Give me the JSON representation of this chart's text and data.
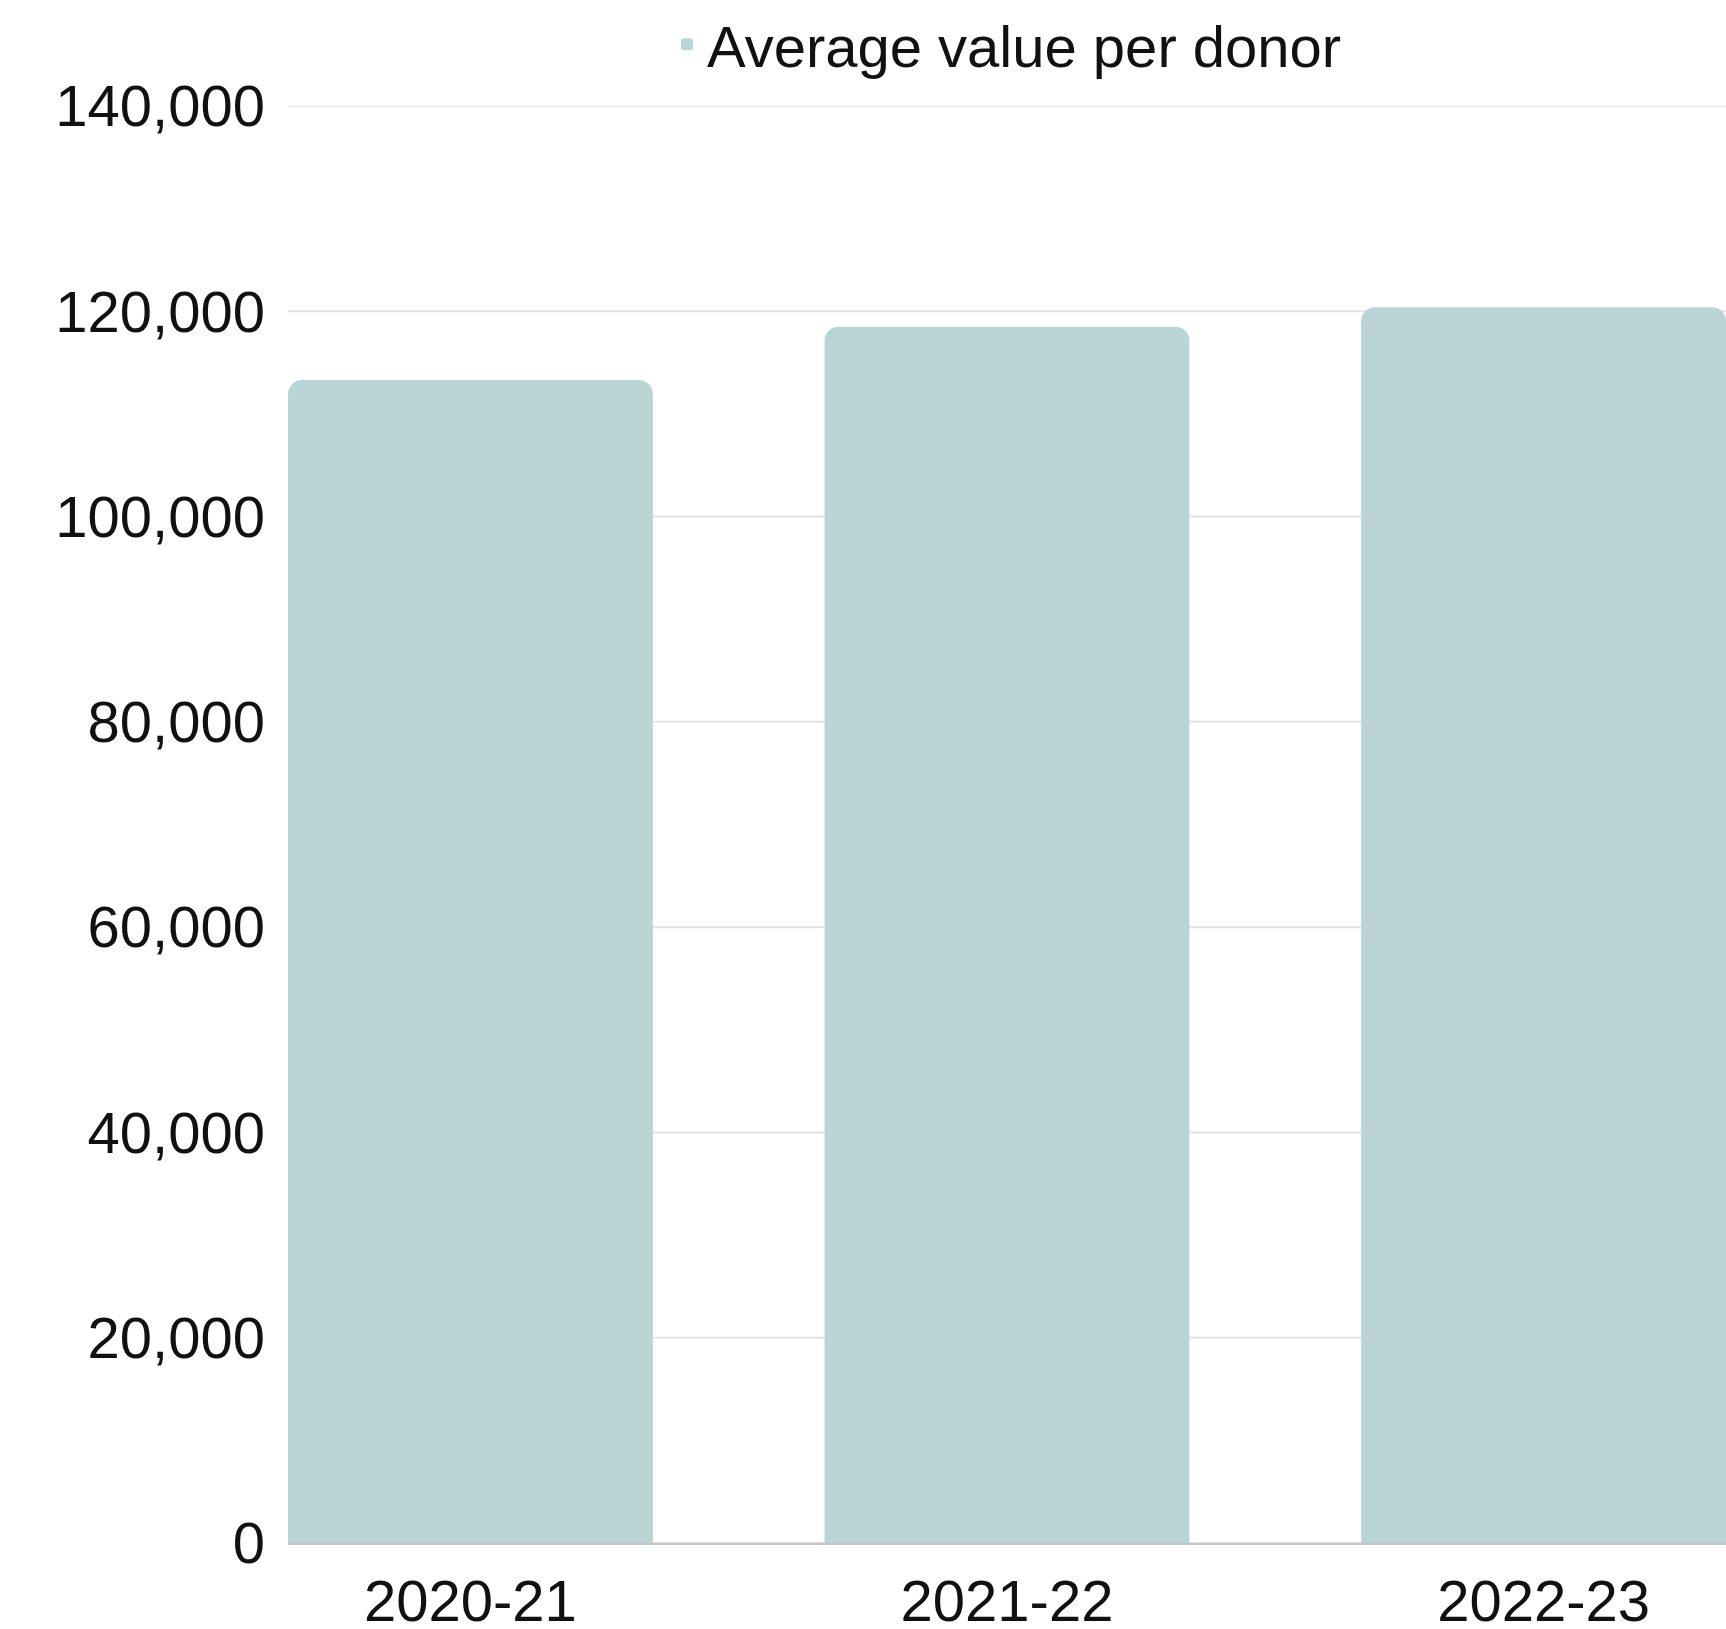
{
  "chart_data": {
    "type": "bar",
    "categories": [
      "2020-21",
      "2021-22",
      "2022-23"
    ],
    "series": [
      {
        "name": "Average value per donor",
        "color": "#bad5d5",
        "values": [
          113300,
          118500,
          120400
        ]
      }
    ],
    "ylim": [
      0,
      140000
    ],
    "yticks": [
      {
        "value": 0,
        "label": "0"
      },
      {
        "value": 20000,
        "label": "20,000"
      },
      {
        "value": 40000,
        "label": "40,000"
      },
      {
        "value": 60000,
        "label": "60,000"
      },
      {
        "value": 80000,
        "label": "80,000"
      },
      {
        "value": 100000,
        "label": "100,000"
      },
      {
        "value": 120000,
        "label": "120,000"
      },
      {
        "value": 140000,
        "label": "140,000"
      }
    ],
    "grid": "y",
    "legend": "top"
  }
}
